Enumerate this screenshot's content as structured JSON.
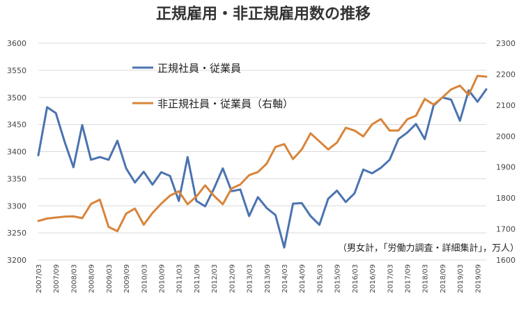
{
  "chart_data": {
    "type": "line",
    "title": "正規雇用・非正規雇用数の推移",
    "note": "（男女計，「労働力調査・詳細集計」，万人）",
    "x_tick_labels": [
      "2007/03",
      "2007/09",
      "2008/03",
      "2008/09",
      "2009/03",
      "2009/09",
      "2010/03",
      "2010/09",
      "2011/03",
      "2011/09",
      "2012/03",
      "2012/09",
      "2013/03",
      "2013/09",
      "2014/03",
      "2014/09",
      "2015/03",
      "2015/09",
      "2016/03",
      "2016/09",
      "2017/03",
      "2017/09",
      "2018/03",
      "2018/09",
      "2019/03",
      "2019/09"
    ],
    "y_left": {
      "range": [
        3200,
        3600
      ],
      "ticks": [
        3200,
        3250,
        3300,
        3350,
        3400,
        3450,
        3500,
        3550,
        3600
      ]
    },
    "y_right": {
      "range": [
        1600,
        2300
      ],
      "ticks": [
        1600,
        1700,
        1800,
        1900,
        2000,
        2100,
        2200,
        2300
      ]
    },
    "grid": true,
    "series": [
      {
        "name": "正規社員・従業員",
        "axis": "left",
        "color": "#4A73B0",
        "values": [
          3393,
          3482,
          3471,
          3418,
          3371,
          3449,
          3385,
          3390,
          3385,
          3420,
          3369,
          3343,
          3363,
          3339,
          3362,
          3355,
          3309,
          3390,
          3309,
          3299,
          3332,
          3369,
          3327,
          3330,
          3281,
          3316,
          3296,
          3283,
          3223,
          3304,
          3305,
          3281,
          3265,
          3313,
          3328,
          3307,
          3323,
          3367,
          3360,
          3370,
          3385,
          3423,
          3435,
          3451,
          3423,
          3485,
          3500,
          3496,
          3457,
          3513,
          3492,
          3515
        ]
      },
      {
        "name": "非正規社員・従業員（右軸）",
        "axis": "right",
        "color": "#D9843A",
        "values": [
          1726,
          1734,
          1737,
          1740,
          1741,
          1735,
          1781,
          1795,
          1707,
          1693,
          1750,
          1766,
          1714,
          1752,
          1782,
          1808,
          1822,
          1780,
          1805,
          1841,
          1807,
          1780,
          1831,
          1844,
          1874,
          1884,
          1911,
          1965,
          1974,
          1926,
          1957,
          2009,
          1983,
          1957,
          1979,
          2027,
          2018,
          1999,
          2038,
          2055,
          2018,
          2018,
          2054,
          2066,
          2120,
          2102,
          2125,
          2151,
          2163,
          2133,
          2195,
          2192
        ]
      }
    ]
  }
}
